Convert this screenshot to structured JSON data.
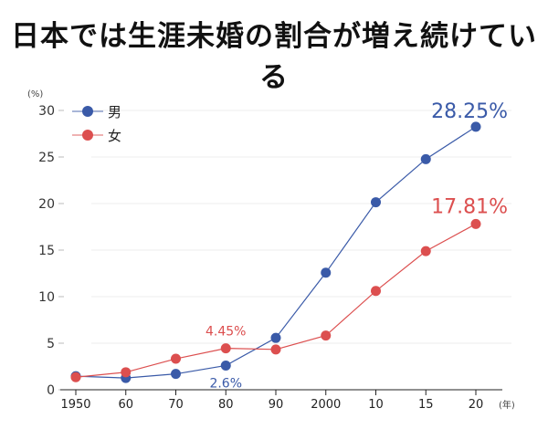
{
  "chart_data": {
    "type": "line",
    "title": "日本では生涯未婚の割合が増え続けている",
    "ylabel": "(%)",
    "xlabel": "(年)",
    "categories": [
      "1950",
      "60",
      "70",
      "80",
      "90",
      "2000",
      "10",
      "15",
      "20"
    ],
    "ylim": [
      0,
      30
    ],
    "yticks": [
      0,
      5,
      10,
      15,
      20,
      25,
      30
    ],
    "grid": true,
    "legend_position": "top-left",
    "series": [
      {
        "name": "男",
        "color": "#3a5aa8",
        "values": [
          1.46,
          1.26,
          1.7,
          2.6,
          5.57,
          12.57,
          20.14,
          24.77,
          28.25
        ]
      },
      {
        "name": "女",
        "color": "#dc4f4f",
        "values": [
          1.35,
          1.88,
          3.33,
          4.45,
          4.33,
          5.82,
          10.61,
          14.89,
          17.81
        ]
      }
    ],
    "annotations": [
      {
        "series": 0,
        "index": 8,
        "text": "28.25%"
      },
      {
        "series": 1,
        "index": 8,
        "text": "17.81%"
      },
      {
        "series": 1,
        "index": 3,
        "text": "4.45%"
      },
      {
        "series": 0,
        "index": 3,
        "text": "2.6%"
      }
    ]
  }
}
